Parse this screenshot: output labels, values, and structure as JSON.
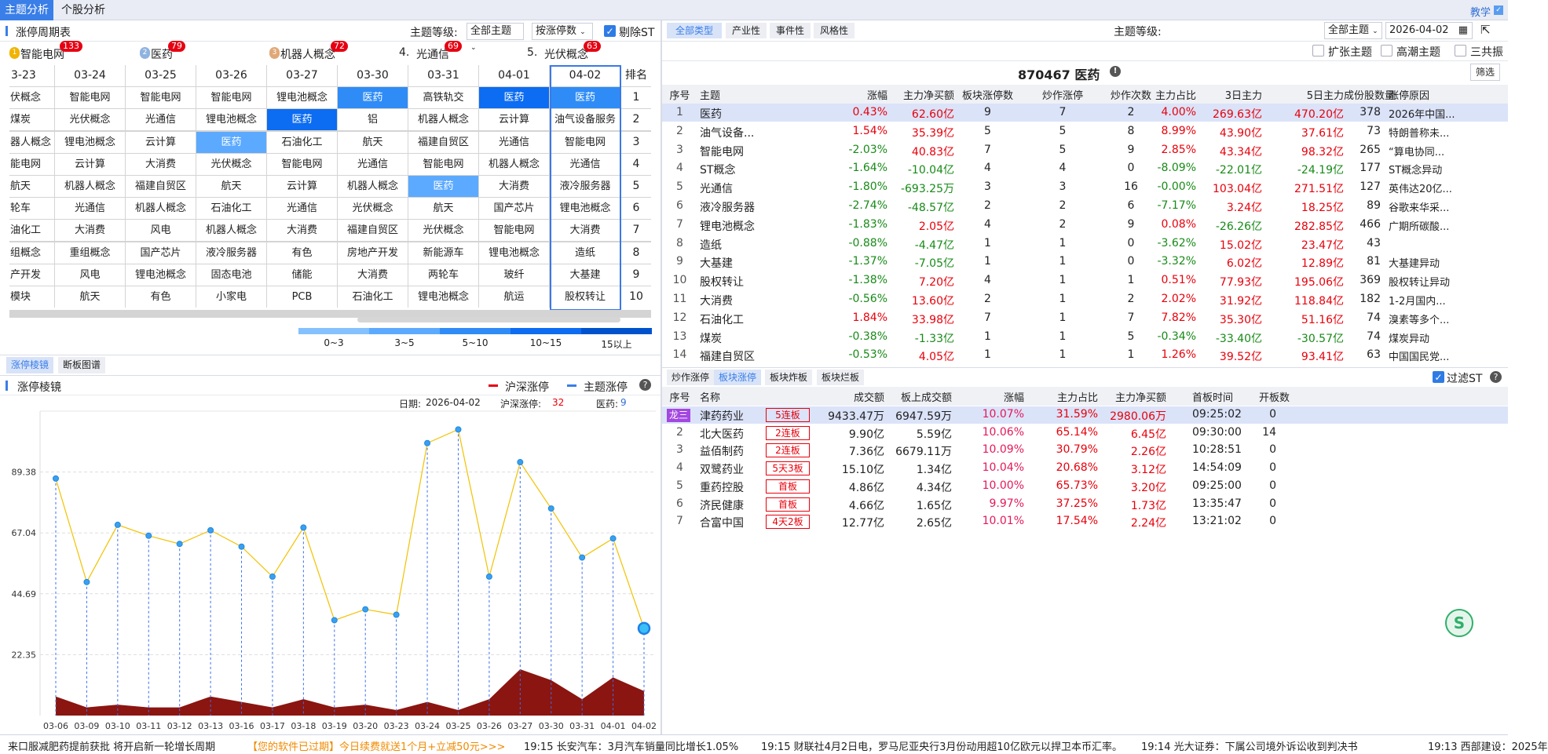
{
  "top_tabs": [
    "主题分析",
    "个股分析"
  ],
  "help_link": "教学",
  "left": {
    "title": "涨停周期表",
    "level_label": "主题等级:",
    "level_value": "全部主题",
    "sort_value": "按涨停数",
    "exclude_st": "剔除ST",
    "exclude_st_checked": true,
    "top5": [
      {
        "rank": "1",
        "name": "智能电网",
        "count": "133",
        "medal": "#f0b400"
      },
      {
        "rank": "2",
        "name": "医药",
        "count": "79",
        "medal": "#8fb3e0"
      },
      {
        "rank": "3",
        "name": "机器人概念",
        "count": "72",
        "medal": "#e0a878"
      },
      {
        "rank": "4.",
        "name": "光通信",
        "count": "69"
      },
      {
        "rank": "5.",
        "name": "光伏概念",
        "count": "63"
      }
    ],
    "grid": {
      "dates": [
        "3-23",
        "03-24",
        "03-25",
        "03-26",
        "03-27",
        "03-30",
        "03-31",
        "04-01",
        "04-02"
      ],
      "rank_header": "排名",
      "rows": [
        [
          "伏概念",
          "智能电网",
          "智能电网",
          "智能电网",
          "锂电池概念",
          "医药",
          "高铁轨交",
          "医药",
          "医药"
        ],
        [
          "煤炭",
          "光伏概念",
          "光通信",
          "锂电池概念",
          "医药",
          "铝",
          "机器人概念",
          "云计算",
          "油气设备服务"
        ],
        [
          "器人概念",
          "锂电池概念",
          "云计算",
          "医药",
          "石油化工",
          "航天",
          "福建自贸区",
          "光通信",
          "智能电网"
        ],
        [
          "能电网",
          "云计算",
          "大消费",
          "光伏概念",
          "智能电网",
          "光通信",
          "智能电网",
          "机器人概念",
          "光通信"
        ],
        [
          "航天",
          "机器人概念",
          "福建自贸区",
          "航天",
          "云计算",
          "机器人概念",
          "医药",
          "大消费",
          "液冷服务器"
        ],
        [
          "轮车",
          "光通信",
          "机器人概念",
          "石油化工",
          "光通信",
          "光伏概念",
          "航天",
          "国产芯片",
          "锂电池概念"
        ],
        [
          "油化工",
          "大消费",
          "风电",
          "机器人概念",
          "大消费",
          "福建自贸区",
          "光伏概念",
          "智能电网",
          "大消费"
        ],
        [
          "组概念",
          "重组概念",
          "国产芯片",
          "液冷服务器",
          "有色",
          "房地产开发",
          "新能源车",
          "锂电池概念",
          "造纸"
        ],
        [
          "产开发",
          "风电",
          "锂电池概念",
          "固态电池",
          "储能",
          "大消费",
          "两轮车",
          "玻纤",
          "大基建"
        ],
        [
          "模块",
          "航天",
          "有色",
          "小家电",
          "PCB",
          "石油化工",
          "锂电池概念",
          "航运",
          "股权转让"
        ]
      ],
      "ranks": [
        "1",
        "2",
        "3",
        "4",
        "5",
        "6",
        "7",
        "8",
        "9",
        "10"
      ],
      "highlights": [
        {
          "row": 0,
          "col": 5,
          "level": "5~10"
        },
        {
          "row": 0,
          "col": 7,
          "level": "10~15"
        },
        {
          "row": 0,
          "col": 8,
          "level": "5~10"
        },
        {
          "row": 1,
          "col": 4,
          "level": "10~15"
        },
        {
          "row": 2,
          "col": 3,
          "level": "3~5"
        },
        {
          "row": 4,
          "col": 6,
          "level": "3~5"
        }
      ],
      "selected_date": "04-02"
    },
    "legend": [
      {
        "label": "0~3",
        "color": "#85c1ff"
      },
      {
        "label": "3~5",
        "color": "#5caaff"
      },
      {
        "label": "5~10",
        "color": "#2f8cf7"
      },
      {
        "label": "10~15",
        "color": "#0c6cf2"
      },
      {
        "label": "15以上",
        "color": "#0052cc"
      }
    ],
    "sub_tabs": [
      "涨停棱镜",
      "断板图谱"
    ],
    "chart_title": "涨停棱镜",
    "chart_legend": [
      {
        "name": "沪深涨停",
        "color": "#e60012"
      },
      {
        "name": "主题涨停",
        "color": "#3a7ee8"
      }
    ],
    "info": {
      "date_label": "日期:",
      "date": "2026-04-02",
      "market_label": "沪深涨停:",
      "market_value": "32",
      "theme_label": "医药:",
      "theme_value": "9"
    }
  },
  "chart_data": {
    "type": "line",
    "x": [
      "03-06",
      "03-09",
      "03-10",
      "03-11",
      "03-12",
      "03-13",
      "03-16",
      "03-17",
      "03-18",
      "03-19",
      "03-20",
      "03-23",
      "03-24",
      "03-25",
      "03-26",
      "03-27",
      "03-30",
      "03-31",
      "04-01",
      "04-02"
    ],
    "series": [
      {
        "name": "沪深涨停",
        "type": "line",
        "color": "#f2c200",
        "values": [
          87,
          49,
          70,
          66,
          63,
          68,
          62,
          51,
          69,
          35,
          39,
          37,
          100,
          105,
          51,
          93,
          76,
          58,
          65,
          32
        ]
      },
      {
        "name": "主题涨停",
        "type": "area",
        "color": "#8b1510",
        "values": [
          7,
          3,
          4,
          3,
          3,
          7,
          5,
          3,
          6,
          3,
          4,
          2,
          5,
          2,
          6,
          17,
          13,
          6,
          14,
          9
        ]
      }
    ],
    "yticks": [
      "22.35",
      "44.69",
      "67.04",
      "89.38"
    ],
    "ylim": [
      0,
      111.73
    ],
    "grid": true
  },
  "right": {
    "type_tabs": [
      "全部类型",
      "产业性",
      "事件性",
      "风格性"
    ],
    "level_label": "主题等级:",
    "level_value": "全部主题",
    "date_value": "2026-04-02",
    "filters": [
      "扩张主题",
      "高潮主题",
      "三共振"
    ],
    "theme_title": "870467 医药",
    "filter_button": "筛选",
    "theme_headers": [
      "序号",
      "主题",
      "涨幅",
      "主力净买额",
      "板块涨停数",
      "炒作涨停",
      "炒作次数",
      "主力占比",
      "3日主力",
      "5日主力",
      "成份股数量",
      "涨停原因"
    ],
    "theme_rows": [
      [
        "1",
        "医药",
        "0.43%",
        "62.60亿",
        "9",
        "7",
        "2",
        "4.00%",
        "269.63亿",
        "470.20亿",
        "378",
        "2026年中国..."
      ],
      [
        "2",
        "油气设备...",
        "1.54%",
        "35.39亿",
        "5",
        "5",
        "8",
        "8.99%",
        "43.90亿",
        "37.61亿",
        "73",
        "特朗普称未..."
      ],
      [
        "3",
        "智能电网",
        "-2.03%",
        "40.83亿",
        "7",
        "5",
        "9",
        "2.85%",
        "43.34亿",
        "98.32亿",
        "265",
        "“算电协同..."
      ],
      [
        "4",
        "ST概念",
        "-1.64%",
        "-10.04亿",
        "4",
        "4",
        "0",
        "-8.09%",
        "-22.01亿",
        "-24.19亿",
        "177",
        "ST概念异动"
      ],
      [
        "5",
        "光通信",
        "-1.80%",
        "-693.25万",
        "3",
        "3",
        "16",
        "-0.00%",
        "103.04亿",
        "271.51亿",
        "127",
        "英伟达20亿..."
      ],
      [
        "6",
        "液冷服务器",
        "-2.74%",
        "-48.57亿",
        "2",
        "2",
        "6",
        "-7.17%",
        "3.24亿",
        "18.25亿",
        "89",
        "谷歌来华采..."
      ],
      [
        "7",
        "锂电池概念",
        "-1.83%",
        "2.05亿",
        "4",
        "2",
        "9",
        "0.08%",
        "-26.26亿",
        "282.85亿",
        "466",
        "广期所碳酸..."
      ],
      [
        "8",
        "造纸",
        "-0.88%",
        "-4.47亿",
        "1",
        "1",
        "0",
        "-3.62%",
        "15.02亿",
        "23.47亿",
        "43",
        ""
      ],
      [
        "9",
        "大基建",
        "-1.37%",
        "-7.05亿",
        "1",
        "1",
        "0",
        "-3.32%",
        "6.02亿",
        "12.89亿",
        "81",
        "大基建异动"
      ],
      [
        "10",
        "股权转让",
        "-1.38%",
        "7.20亿",
        "4",
        "1",
        "1",
        "0.51%",
        "77.93亿",
        "195.06亿",
        "369",
        "股权转让异动"
      ],
      [
        "11",
        "大消费",
        "-0.56%",
        "13.60亿",
        "2",
        "1",
        "2",
        "2.02%",
        "31.92亿",
        "118.84亿",
        "182",
        "1-2月国内..."
      ],
      [
        "12",
        "石油化工",
        "1.84%",
        "33.98亿",
        "7",
        "1",
        "7",
        "7.82%",
        "35.30亿",
        "51.16亿",
        "74",
        "溴素等多个..."
      ],
      [
        "13",
        "煤炭",
        "-0.38%",
        "-1.33亿",
        "1",
        "1",
        "5",
        "-0.34%",
        "-33.40亿",
        "-30.57亿",
        "74",
        "煤炭异动"
      ],
      [
        "14",
        "福建自贸区",
        "-0.53%",
        "4.05亿",
        "1",
        "1",
        "1",
        "1.26%",
        "39.52亿",
        "93.41亿",
        "63",
        "中国国民党..."
      ]
    ],
    "stock_tabs": [
      "炒作涨停",
      "板块涨停",
      "板块炸板",
      "板块烂板"
    ],
    "filter_st": "过滤ST",
    "filter_st_checked": true,
    "stock_headers": [
      "序号",
      "名称",
      "",
      "成交额",
      "板上成交额",
      "涨幅",
      "主力占比",
      "主力净买额",
      "首板时间",
      "开板数"
    ],
    "stock_rows": [
      [
        "龙三",
        "津药药业",
        "5连板",
        "9433.47万",
        "6947.59万",
        "10.07%",
        "31.59%",
        "2980.06万",
        "09:25:02",
        "0"
      ],
      [
        "2",
        "北大医药",
        "2连板",
        "9.90亿",
        "5.59亿",
        "10.06%",
        "65.14%",
        "6.45亿",
        "09:30:00",
        "14"
      ],
      [
        "3",
        "益佰制药",
        "2连板",
        "7.36亿",
        "6679.11万",
        "10.09%",
        "30.79%",
        "2.26亿",
        "10:28:51",
        "0"
      ],
      [
        "4",
        "双鹭药业",
        "5天3板",
        "15.10亿",
        "1.34亿",
        "10.04%",
        "20.68%",
        "3.12亿",
        "14:54:09",
        "0"
      ],
      [
        "5",
        "重药控股",
        "首板",
        "4.86亿",
        "4.34亿",
        "10.00%",
        "65.73%",
        "3.20亿",
        "09:25:00",
        "0"
      ],
      [
        "6",
        "济民健康",
        "首板",
        "4.66亿",
        "1.65亿",
        "9.97%",
        "37.25%",
        "1.73亿",
        "13:35:47",
        "0"
      ],
      [
        "7",
        "合富中国",
        "4天2板",
        "12.77亿",
        "2.65亿",
        "10.01%",
        "17.54%",
        "2.24亿",
        "13:21:02",
        "0"
      ]
    ]
  },
  "ticker": [
    {
      "text": "来口服减肥药提前获批 将开启新一轮增长周期",
      "color": "#222"
    },
    {
      "text": "【您的软件已过期】今日续费就送1个月+立减50元>>>",
      "color": "#f08a00"
    },
    {
      "text": "19:15 长安汽车：3月汽车销量同比增长1.05%",
      "color": "#222"
    },
    {
      "text": "19:15 财联社4月2日电，罗马尼亚央行3月份动用超10亿欧元以捍卫本币汇率。",
      "color": "#222"
    },
    {
      "text": "19:14 光大证券：下属公司境外诉讼收到判决书",
      "color": "#222"
    },
    {
      "text": "19:13 西部建设：2025年",
      "color": "#222"
    }
  ]
}
